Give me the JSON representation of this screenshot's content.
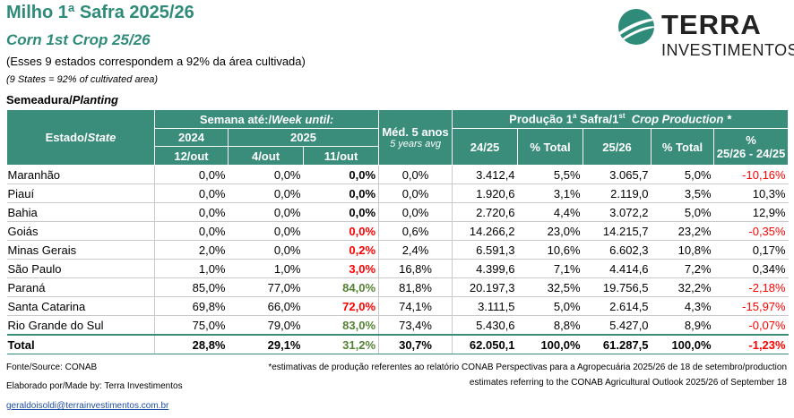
{
  "header": {
    "title": "Milho 1ª Safra 2025/26",
    "subtitle": "Corn 1st Crop 25/26",
    "note_pt": "(Esses 9 estados correspondem a 92% da área cultivada)",
    "note_en": "(9 States = 92% of cultivated area)",
    "section_pt": "Semeadura/",
    "section_en": "Planting"
  },
  "logo": {
    "name": "TERRA",
    "sub": "INVESTIMENTOS",
    "icon": "terra-logo-icon"
  },
  "table": {
    "h_state_pt": "Estado/",
    "h_state_en": "State",
    "h_week_pt": "Semana até:/",
    "h_week_en": "Week until:",
    "h_2024": "2024",
    "h_2025": "2025",
    "h_d1": "12/out",
    "h_d2": "4/out",
    "h_d3": "11/out",
    "h_avg": "Méd. 5 anos",
    "h_avg_sub": "5 years avg",
    "h_prod_pt": "Produção 1",
    "h_prod_sup": "a",
    "h_prod_mid": " Safra/1",
    "h_prod_sup2": "st",
    "h_prod_en": "  Crop Production *",
    "h_2425": "24/25",
    "h_pct1": "% Total",
    "h_2526": "25/26",
    "h_pct2": "% Total",
    "h_var1": "%",
    "h_var2": "25/26 - 24/25",
    "rows": [
      {
        "state": "Maranhão",
        "a": "0,0%",
        "b": "0,0%",
        "c": "0,0%",
        "avg": "0,0%",
        "p1": "3.412,4",
        "t1": "5,5%",
        "p2": "3.065,7",
        "t2": "5,0%",
        "v": "-10,16%"
      },
      {
        "state": "Piauí",
        "a": "0,0%",
        "b": "0,0%",
        "c": "0,0%",
        "avg": "0,0%",
        "p1": "1.920,6",
        "t1": "3,1%",
        "p2": "2.119,0",
        "t2": "3,5%",
        "v": "10,3%"
      },
      {
        "state": "Bahia",
        "a": "0,0%",
        "b": "0,0%",
        "c": "0,0%",
        "avg": "0,0%",
        "p1": "2.720,6",
        "t1": "4,4%",
        "p2": "3.072,2",
        "t2": "5,0%",
        "v": "12,9%"
      },
      {
        "state": "Goiás",
        "a": "0,0%",
        "b": "0,0%",
        "c": "0,0%",
        "avg": "0,6%",
        "p1": "14.266,2",
        "t1": "23,0%",
        "p2": "14.215,7",
        "t2": "23,2%",
        "v": "-0,35%"
      },
      {
        "state": "Minas Gerais",
        "a": "2,0%",
        "b": "0,0%",
        "c": "0,2%",
        "avg": "2,4%",
        "p1": "6.591,3",
        "t1": "10,6%",
        "p2": "6.602,3",
        "t2": "10,8%",
        "v": "0,17%"
      },
      {
        "state": "São Paulo",
        "a": "1,0%",
        "b": "1,0%",
        "c": "3,0%",
        "avg": "16,8%",
        "p1": "4.399,6",
        "t1": "7,1%",
        "p2": "4.414,6",
        "t2": "7,2%",
        "v": "0,34%"
      },
      {
        "state": "Paraná",
        "a": "85,0%",
        "b": "77,0%",
        "c": "84,0%",
        "avg": "81,8%",
        "p1": "20.197,3",
        "t1": "32,5%",
        "p2": "19.756,5",
        "t2": "32,2%",
        "v": "-2,18%"
      },
      {
        "state": "Santa Catarina",
        "a": "69,8%",
        "b": "66,0%",
        "c": "72,0%",
        "avg": "74,1%",
        "p1": "3.111,5",
        "t1": "5,0%",
        "p2": "2.614,5",
        "t2": "4,3%",
        "v": "-15,97%"
      },
      {
        "state": "Rio Grande do Sul",
        "a": "75,0%",
        "b": "79,0%",
        "c": "83,0%",
        "avg": "73,4%",
        "p1": "5.430,6",
        "t1": "8,8%",
        "p2": "5.427,0",
        "t2": "8,9%",
        "v": "-0,07%"
      }
    ],
    "total": {
      "state": "Total",
      "a": "28,8%",
      "b": "29,1%",
      "c": "31,2%",
      "avg": "30,7%",
      "p1": "62.050,1",
      "t1": "100,0%",
      "p2": "61.287,5",
      "t2": "100,0%",
      "v": "-1,23%"
    }
  },
  "footer": {
    "source": "Fonte/Source: CONAB",
    "made_by": "Elaborado por/Made by: Terra Investimentos",
    "email": "geraldoisoldi@terrainvestimentos.com.br",
    "note1": "*estimativas de produção referentes ao relatório CONAB Perspectivas para a Agropecuária 2025/26 de 18 de setembro/production",
    "note2": "estimates referring to the CONAB Agricultural Outlook 2025/26 of September 18"
  },
  "colors": {
    "teal": "#3a8c7b",
    "title": "#2e8b79",
    "red": "#ff0000",
    "green": "#548235"
  }
}
